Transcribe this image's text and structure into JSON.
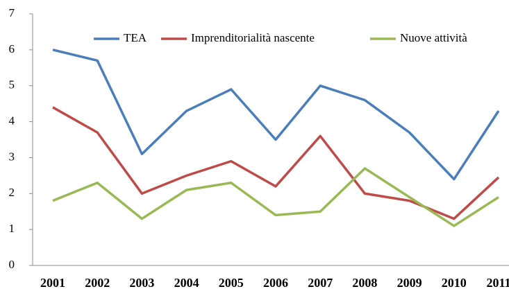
{
  "chart_data": {
    "type": "line",
    "categories": [
      "2001",
      "2002",
      "2003",
      "2004",
      "2005",
      "2006",
      "2007",
      "2008",
      "2009",
      "2010",
      "2011"
    ],
    "series": [
      {
        "name": "TEA",
        "color": "#4a7ebb",
        "values": [
          6.0,
          5.7,
          3.1,
          4.3,
          4.9,
          3.5,
          5.0,
          4.6,
          3.7,
          2.4,
          4.3
        ]
      },
      {
        "name": "Imprenditorialità nascente",
        "color": "#be4b48",
        "values": [
          4.4,
          3.7,
          2.0,
          2.5,
          2.9,
          2.2,
          3.6,
          2.0,
          1.8,
          1.3,
          2.45
        ]
      },
      {
        "name": "Nuove attività",
        "color": "#98b954",
        "values": [
          1.8,
          2.3,
          1.3,
          2.1,
          2.3,
          1.4,
          1.5,
          2.7,
          1.9,
          1.1,
          1.9
        ]
      }
    ],
    "ylim": [
      0,
      7
    ],
    "yticks": [
      0,
      1,
      2,
      3,
      4,
      5,
      6,
      7
    ],
    "legend": "top"
  }
}
